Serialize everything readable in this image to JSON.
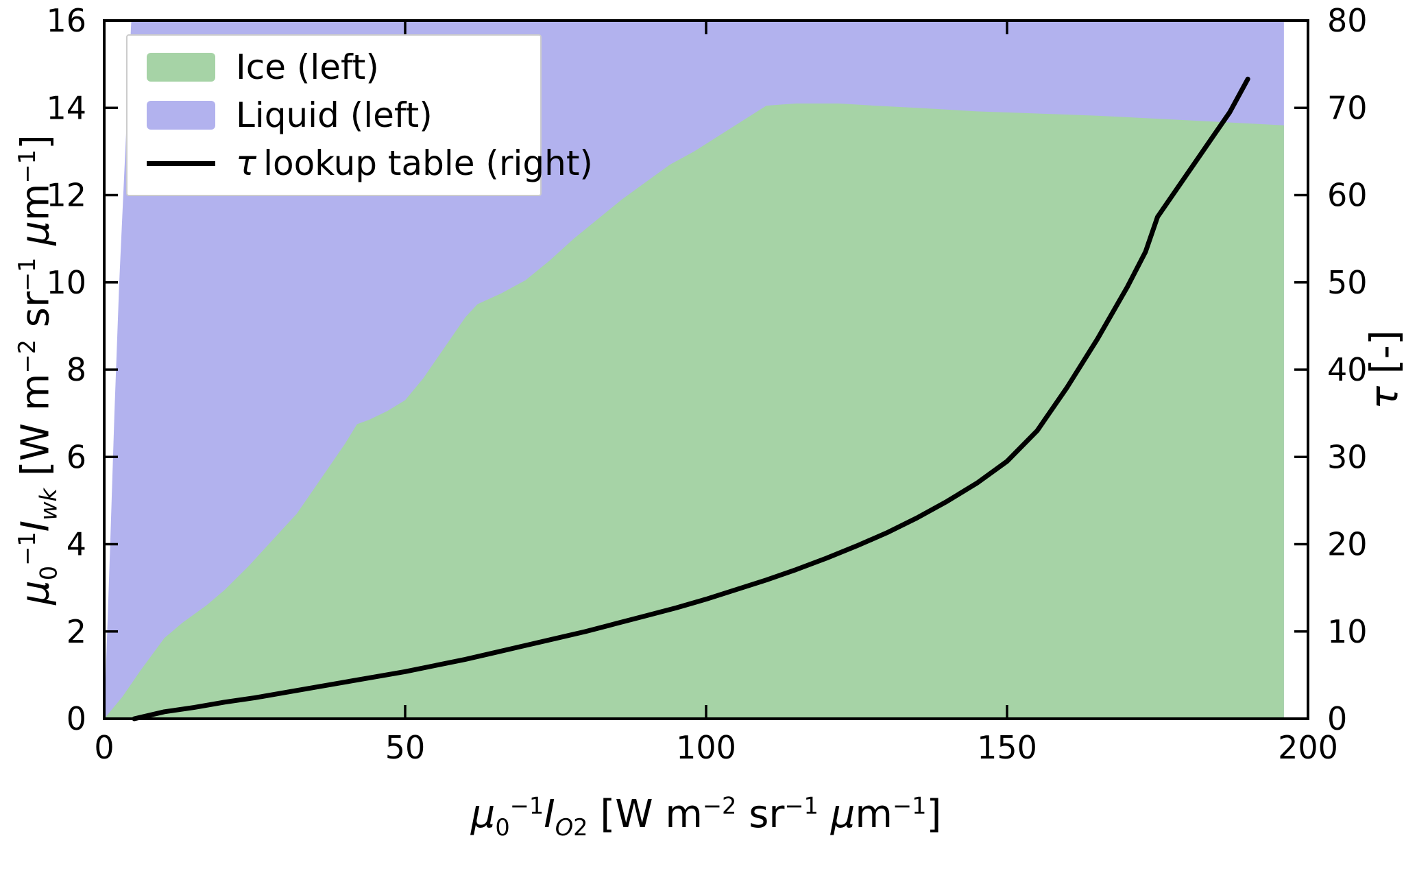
{
  "figure": {
    "background": "#ffffff",
    "spine_color": "#000000"
  },
  "axes": {
    "xlabel": "μ0^-1 I_O2 [W m^-2 sr^-1 μm^-1]",
    "xlabel_html": "<i>μ</i><sub>0</sub><sup>−1</sup><i>I</i><sub><i>O</i>2</sub> [W m<sup>−2</sup> sr<sup>−1</sup> <i>μ</i>m<sup>−1</sup>]",
    "ylabel_left": "μ0^-1 I_wk [W m^-2 sr^-1 μm^-1]",
    "ylabel_left_html": "<i>μ</i><sub>0</sub><sup>−1</sup><i>I</i><sub><i>wk</i></sub> [W m<sup>−2</sup> sr<sup>−1</sup> <i>μ</i>m<sup>−1</sup>]",
    "ylabel_right": "τ [-]",
    "ylabel_right_html": "<i>τ</i> [-]"
  },
  "legend": {
    "items": [
      {
        "label": "Ice (left)",
        "label_html": "Ice (left)",
        "color": "#a6d3a6",
        "kind": "patch"
      },
      {
        "label": "Liquid (left)",
        "label_html": "Liquid (left)",
        "color": "#b2b2ee",
        "kind": "patch"
      },
      {
        "label": "τ lookup table (right)",
        "label_html": "<i>τ</i>&#8201;lookup table (right)",
        "color": "#000000",
        "kind": "line"
      }
    ]
  },
  "chart_data": {
    "type": "area",
    "xlim": [
      0,
      200
    ],
    "ylim_left": [
      0,
      16
    ],
    "ylim_right": [
      0,
      80
    ],
    "x_ticks": [
      0,
      50,
      100,
      150,
      200
    ],
    "y_ticks_left": [
      0,
      2,
      4,
      6,
      8,
      10,
      12,
      14,
      16
    ],
    "y_ticks_right": [
      0,
      10,
      20,
      30,
      40,
      50,
      60,
      70,
      80
    ],
    "grid": false,
    "legend_position": "upper left",
    "series": [
      {
        "name": "Liquid (left)",
        "kind": "area",
        "axis": "left",
        "color": "#b2b2ee",
        "boundary": [
          [
            0,
            0
          ],
          [
            0.5,
            2
          ],
          [
            1,
            4
          ],
          [
            1.7,
            7
          ],
          [
            2.5,
            10
          ],
          [
            3.5,
            13
          ],
          [
            4.5,
            16
          ],
          [
            196,
            16
          ]
        ]
      },
      {
        "name": "Ice (left)",
        "kind": "area",
        "axis": "left",
        "color": "#a6d3a6",
        "boundary": [
          [
            0,
            0
          ],
          [
            3,
            0.5
          ],
          [
            6,
            1.1
          ],
          [
            10,
            1.85
          ],
          [
            13,
            2.2
          ],
          [
            17,
            2.6
          ],
          [
            20,
            2.95
          ],
          [
            24,
            3.5
          ],
          [
            28,
            4.1
          ],
          [
            32,
            4.7
          ],
          [
            36,
            5.5
          ],
          [
            40,
            6.3
          ],
          [
            42,
            6.75
          ],
          [
            44,
            6.85
          ],
          [
            47,
            7.05
          ],
          [
            50,
            7.3
          ],
          [
            53,
            7.8
          ],
          [
            57,
            8.6
          ],
          [
            60,
            9.2
          ],
          [
            62,
            9.5
          ],
          [
            66,
            9.75
          ],
          [
            70,
            10.05
          ],
          [
            74,
            10.5
          ],
          [
            78,
            11.0
          ],
          [
            82,
            11.45
          ],
          [
            86,
            11.9
          ],
          [
            90,
            12.3
          ],
          [
            94,
            12.7
          ],
          [
            98,
            13.0
          ],
          [
            102,
            13.35
          ],
          [
            106,
            13.7
          ],
          [
            110,
            14.05
          ],
          [
            115,
            14.1
          ],
          [
            122,
            14.1
          ],
          [
            128,
            14.05
          ],
          [
            135,
            14.0
          ],
          [
            145,
            13.92
          ],
          [
            155,
            13.87
          ],
          [
            165,
            13.82
          ],
          [
            175,
            13.75
          ],
          [
            185,
            13.68
          ],
          [
            196,
            13.6
          ]
        ]
      },
      {
        "name": "τ lookup table (right)",
        "kind": "line",
        "axis": "right",
        "color": "#000000",
        "width": 7,
        "points": [
          [
            5,
            0
          ],
          [
            10,
            0.8
          ],
          [
            15,
            1.3
          ],
          [
            20,
            1.9
          ],
          [
            25,
            2.4
          ],
          [
            30,
            3.0
          ],
          [
            35,
            3.6
          ],
          [
            40,
            4.2
          ],
          [
            45,
            4.8
          ],
          [
            50,
            5.4
          ],
          [
            55,
            6.1
          ],
          [
            60,
            6.8
          ],
          [
            65,
            7.6
          ],
          [
            70,
            8.4
          ],
          [
            75,
            9.2
          ],
          [
            80,
            10.0
          ],
          [
            85,
            10.9
          ],
          [
            90,
            11.8
          ],
          [
            95,
            12.7
          ],
          [
            100,
            13.7
          ],
          [
            105,
            14.8
          ],
          [
            110,
            15.9
          ],
          [
            115,
            17.1
          ],
          [
            120,
            18.4
          ],
          [
            125,
            19.8
          ],
          [
            130,
            21.3
          ],
          [
            135,
            23.0
          ],
          [
            140,
            24.9
          ],
          [
            145,
            27.0
          ],
          [
            150,
            29.5
          ],
          [
            155,
            33.0
          ],
          [
            160,
            38.0
          ],
          [
            165,
            43.5
          ],
          [
            170,
            49.5
          ],
          [
            173,
            53.5
          ],
          [
            175,
            57.5
          ],
          [
            178,
            60.5
          ],
          [
            181,
            63.5
          ],
          [
            184,
            66.5
          ],
          [
            187,
            69.5
          ],
          [
            190,
            73.3
          ]
        ]
      }
    ]
  }
}
